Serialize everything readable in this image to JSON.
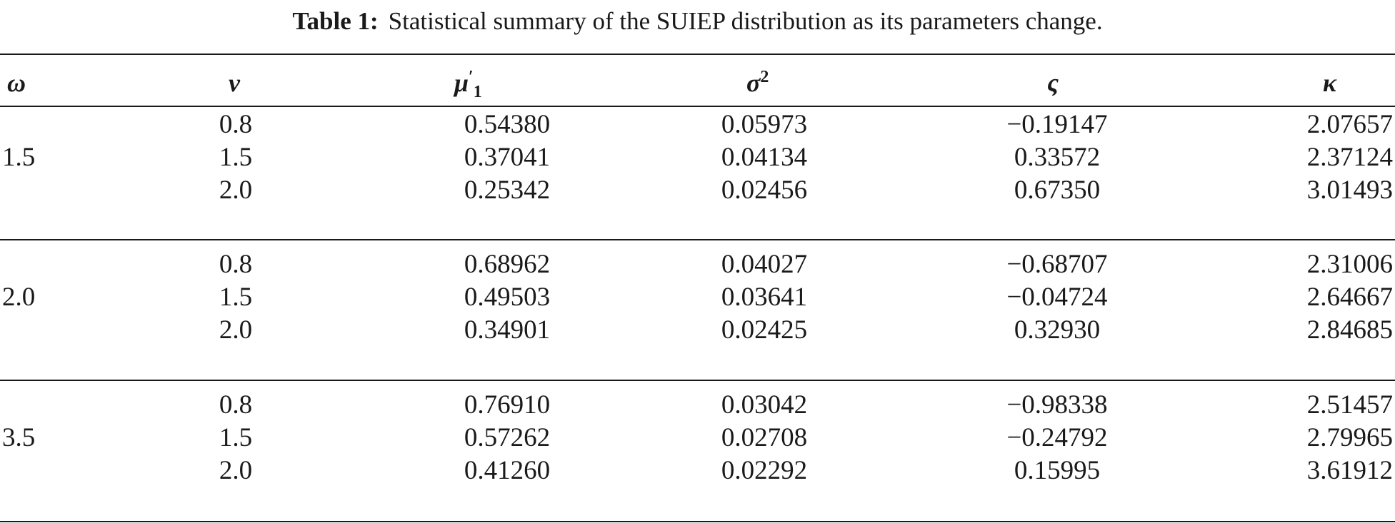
{
  "caption": {
    "label": "Table 1:",
    "text": "Statistical summary of the SUIEP distribution as its parameters change."
  },
  "headers": {
    "omega": "ω",
    "nu": "ν",
    "mu_base": "μ",
    "mu_prime": "′",
    "mu_sub": "1",
    "sigma_base": "σ",
    "sigma_sup": "2",
    "skew": "ς",
    "kurt": "κ"
  },
  "groups": [
    {
      "omega": "1.5",
      "rows": [
        {
          "nu": "0.8",
          "mu": "0.54380",
          "var": "0.05973",
          "skew": "−0.19147",
          "kurt": "2.07657"
        },
        {
          "nu": "1.5",
          "mu": "0.37041",
          "var": "0.04134",
          "skew": "0.33572",
          "kurt": "2.37124"
        },
        {
          "nu": "2.0",
          "mu": "0.25342",
          "var": "0.02456",
          "skew": "0.67350",
          "kurt": "3.01493"
        }
      ]
    },
    {
      "omega": "2.0",
      "rows": [
        {
          "nu": "0.8",
          "mu": "0.68962",
          "var": "0.04027",
          "skew": "−0.68707",
          "kurt": "2.31006"
        },
        {
          "nu": "1.5",
          "mu": "0.49503",
          "var": "0.03641",
          "skew": "−0.04724",
          "kurt": "2.64667"
        },
        {
          "nu": "2.0",
          "mu": "0.34901",
          "var": "0.02425",
          "skew": "0.32930",
          "kurt": "2.84685"
        }
      ]
    },
    {
      "omega": "3.5",
      "rows": [
        {
          "nu": "0.8",
          "mu": "0.76910",
          "var": "0.03042",
          "skew": "−0.98338",
          "kurt": "2.51457"
        },
        {
          "nu": "1.5",
          "mu": "0.57262",
          "var": "0.02708",
          "skew": "−0.24792",
          "kurt": "2.79965"
        },
        {
          "nu": "2.0",
          "mu": "0.41260",
          "var": "0.02292",
          "skew": "0.15995",
          "kurt": "3.61912"
        }
      ]
    }
  ]
}
